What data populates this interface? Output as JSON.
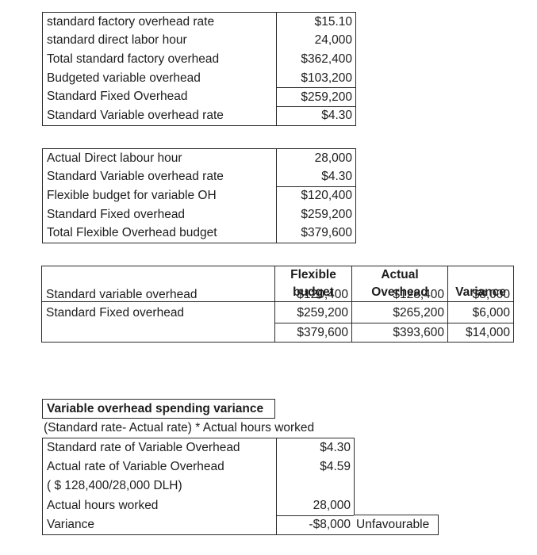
{
  "theme": {
    "background": "#ffffff",
    "text_color": "#1d1d1d",
    "border_color": "#2a2a2a"
  },
  "standard_table": {
    "rows": [
      {
        "label": "standard factory overhead rate",
        "value": "$15.10"
      },
      {
        "label": "standard direct labor hour",
        "value": "24,000"
      },
      {
        "label": "Total standard factory overhead",
        "value": "$362,400"
      },
      {
        "label": "Budgeted variable overhead",
        "value": "$103,200"
      },
      {
        "label": "Standard Fixed Overhead",
        "value": "$259,200"
      },
      {
        "label": "Standard Variable overhead rate",
        "value": "$4.30"
      }
    ]
  },
  "flexible_budget_table": {
    "rows": [
      {
        "label": "Actual Direct labour hour",
        "value": "28,000"
      },
      {
        "label": "Standard Variable overhead rate",
        "value": "$4.30"
      },
      {
        "label": "Flexible budget for variable OH",
        "value": "$120,400"
      },
      {
        "label": "Standard Fixed overhead",
        "value": "$259,200"
      },
      {
        "label": "Total Flexible Overhead budget",
        "value": "$379,600"
      }
    ]
  },
  "comparison_table": {
    "column_headers": {
      "flexible_line1": "Flexible",
      "flexible_line2": "budget",
      "actual_line1": "Actual",
      "actual_line2": "Overhead",
      "variance": "Variance"
    },
    "rows": [
      {
        "label": "Standard variable overhead",
        "flexible": "$120,400",
        "actual": "$128,400",
        "variance": "$8,000"
      },
      {
        "label": "Standard Fixed overhead",
        "flexible": "$259,200",
        "actual": "$265,200",
        "variance": "$6,000"
      }
    ],
    "total_row": {
      "flexible": "$379,600",
      "actual": "$393,600",
      "variance": "$14,000"
    }
  },
  "spending_variance_section": {
    "title": "Variable overhead spending variance",
    "formula": "(Standard rate- Actual rate) * Actual hours worked",
    "rows": [
      {
        "label": "Standard rate of Variable Overhead",
        "value": "$4.30"
      },
      {
        "label": "Actual rate of Variable Overhead",
        "value": "$4.59"
      },
      {
        "label": "( $ 128,400/28,000 DLH)",
        "value": ""
      },
      {
        "label": "Actual hours worked",
        "value": "28,000"
      },
      {
        "label": "Variance",
        "value": "-$8,000"
      }
    ],
    "variance_note": "Unfavourable"
  }
}
